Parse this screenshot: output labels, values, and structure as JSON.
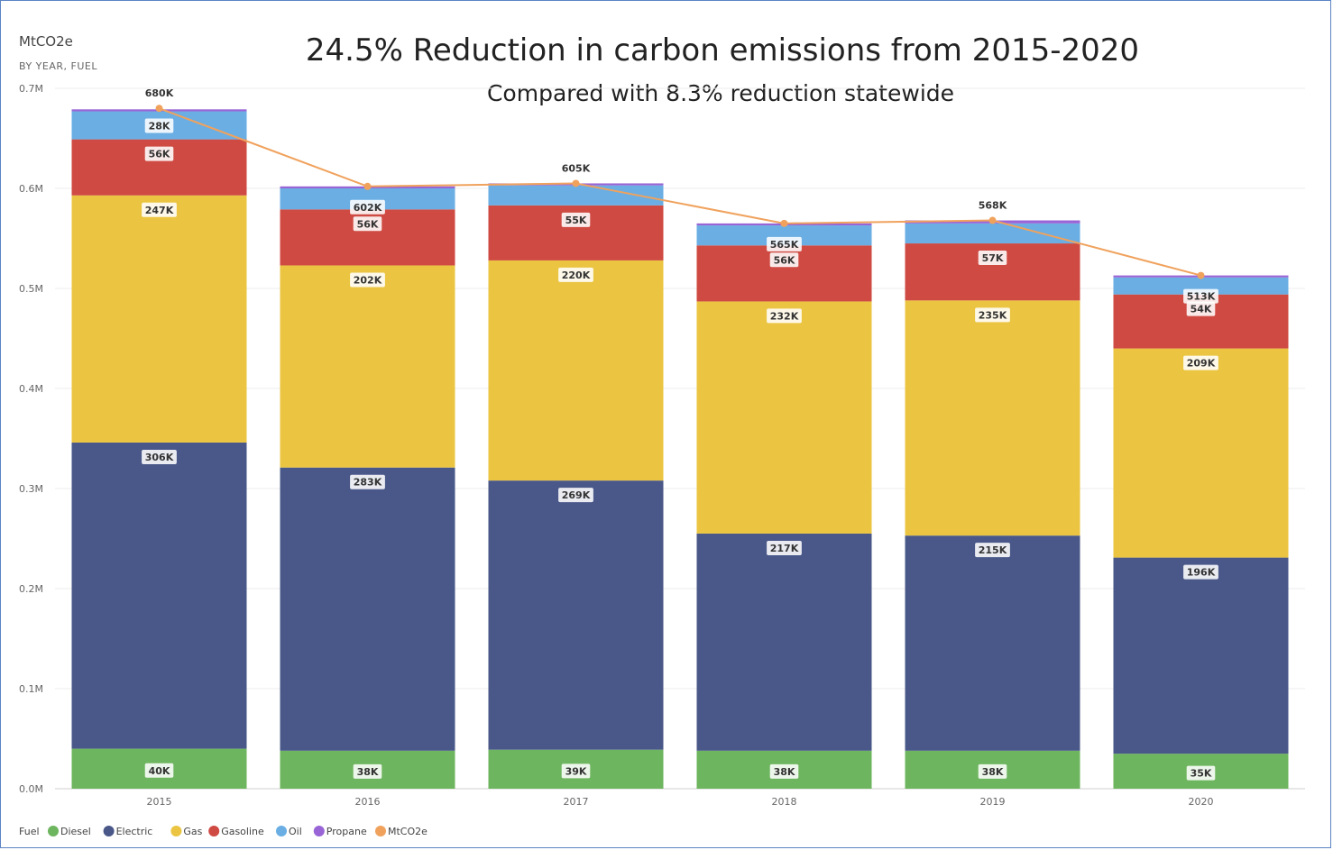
{
  "chart_data": {
    "type": "bar",
    "stacked": true,
    "title": "24.5% Reduction in carbon emissions from 2015-2020",
    "subtitle": "Compared with 8.3% reduction statewide",
    "ylabel": "MtCO2e",
    "ylabel_sub": "BY YEAR, FUEL",
    "ylim": [
      0,
      0.7
    ],
    "yticks": [
      {
        "value": 0.0,
        "label": "0.0M"
      },
      {
        "value": 0.1,
        "label": "0.1M"
      },
      {
        "value": 0.2,
        "label": "0.2M"
      },
      {
        "value": 0.3,
        "label": "0.3M"
      },
      {
        "value": 0.4,
        "label": "0.4M"
      },
      {
        "value": 0.5,
        "label": "0.5M"
      },
      {
        "value": 0.6,
        "label": "0.6M"
      },
      {
        "value": 0.7,
        "label": "0.7M"
      }
    ],
    "grid": true,
    "categories": [
      "2015",
      "2016",
      "2017",
      "2018",
      "2019",
      "2020"
    ],
    "series": [
      {
        "name": "Diesel",
        "color": "#6db55e",
        "values": [
          0.04,
          0.038,
          0.039,
          0.038,
          0.038,
          0.035
        ],
        "labels": [
          "40K",
          "38K",
          "39K",
          "38K",
          "38K",
          "35K"
        ]
      },
      {
        "name": "Electric",
        "color": "#4a5889",
        "values": [
          0.306,
          0.283,
          0.269,
          0.217,
          0.215,
          0.196
        ],
        "labels": [
          "306K",
          "283K",
          "269K",
          "217K",
          "215K",
          "196K"
        ]
      },
      {
        "name": "Gas",
        "color": "#ebc541",
        "values": [
          0.247,
          0.202,
          0.22,
          0.232,
          0.235,
          0.209
        ],
        "labels": [
          "247K",
          "202K",
          "220K",
          "232K",
          "235K",
          "209K"
        ]
      },
      {
        "name": "Gasoline",
        "color": "#cf4a42",
        "values": [
          0.056,
          0.056,
          0.055,
          0.056,
          0.057,
          0.054
        ],
        "labels": [
          "56K",
          "56K",
          "55K",
          "56K",
          "57K",
          "54K"
        ]
      },
      {
        "name": "Oil",
        "color": "#6aaee3",
        "values": [
          0.028,
          0.021,
          0.02,
          0.02,
          0.02,
          0.017
        ],
        "labels": [
          "28K",
          "",
          "",
          "",
          "",
          ""
        ]
      },
      {
        "name": "Propane",
        "color": "#9965d6",
        "values": [
          0.002,
          0.002,
          0.002,
          0.002,
          0.003,
          0.002
        ],
        "labels": [
          "",
          "",
          "",
          "",
          "",
          ""
        ]
      }
    ],
    "line": {
      "name": "MtCO2e",
      "color": "#f0a25d",
      "values": [
        0.68,
        0.602,
        0.605,
        0.565,
        0.568,
        0.513
      ],
      "labels": [
        "680K",
        "602K",
        "605K",
        "565K",
        "568K",
        "513K"
      ]
    },
    "legend": {
      "title": "Fuel",
      "position": "bottom-left",
      "items": [
        {
          "name": "Diesel",
          "color": "#6db55e"
        },
        {
          "name": "Electric",
          "color": "#4a5889"
        },
        {
          "name": "Gas",
          "color": "#ebc541"
        },
        {
          "name": "Gasoline",
          "color": "#cf4a42"
        },
        {
          "name": "Oil",
          "color": "#6aaee3"
        },
        {
          "name": "Propane",
          "color": "#9965d6"
        },
        {
          "name": "MtCO2e",
          "color": "#f0a25d"
        }
      ]
    }
  }
}
